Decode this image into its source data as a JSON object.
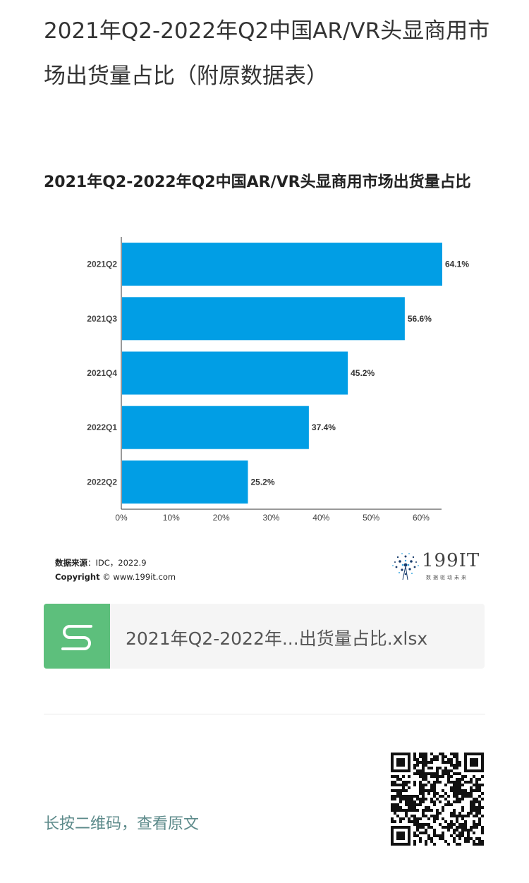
{
  "article": {
    "title": "2021年Q2-2022年Q2中国AR/VR头显商用市场出货量占比（附原数据表）"
  },
  "chart_data": {
    "type": "bar",
    "orientation": "horizontal",
    "title": "2021年Q2-2022年Q2中国AR/VR头显商用市场出货量占比",
    "categories": [
      "2021Q2",
      "2021Q3",
      "2021Q4",
      "2022Q1",
      "2022Q2"
    ],
    "values": [
      64.1,
      56.6,
      45.2,
      37.4,
      25.2
    ],
    "value_labels": [
      "64.1%",
      "56.6%",
      "45.2%",
      "37.4%",
      "25.2%"
    ],
    "xlim": [
      0,
      64.1
    ],
    "x_ticks": [
      "0%",
      "10%",
      "20%",
      "30%",
      "40%",
      "50%",
      "60%"
    ],
    "bar_color": "#019ee5",
    "grid": false,
    "legend": "none"
  },
  "source": {
    "label": "数据来源",
    "value": "：IDC，2022.9",
    "copyright_label": "Copyright",
    "copyright_value": "© www.199it.com"
  },
  "brand": {
    "name": "199IT",
    "slogan": "数据驱动未来"
  },
  "attachment": {
    "icon": "spreadsheet-s-icon",
    "icon_color": "#5dbf7c",
    "filename": "2021年Q2-2022年...出货量占比.xlsx"
  },
  "footer": {
    "qr_prompt": "长按二维码，查看原文"
  }
}
